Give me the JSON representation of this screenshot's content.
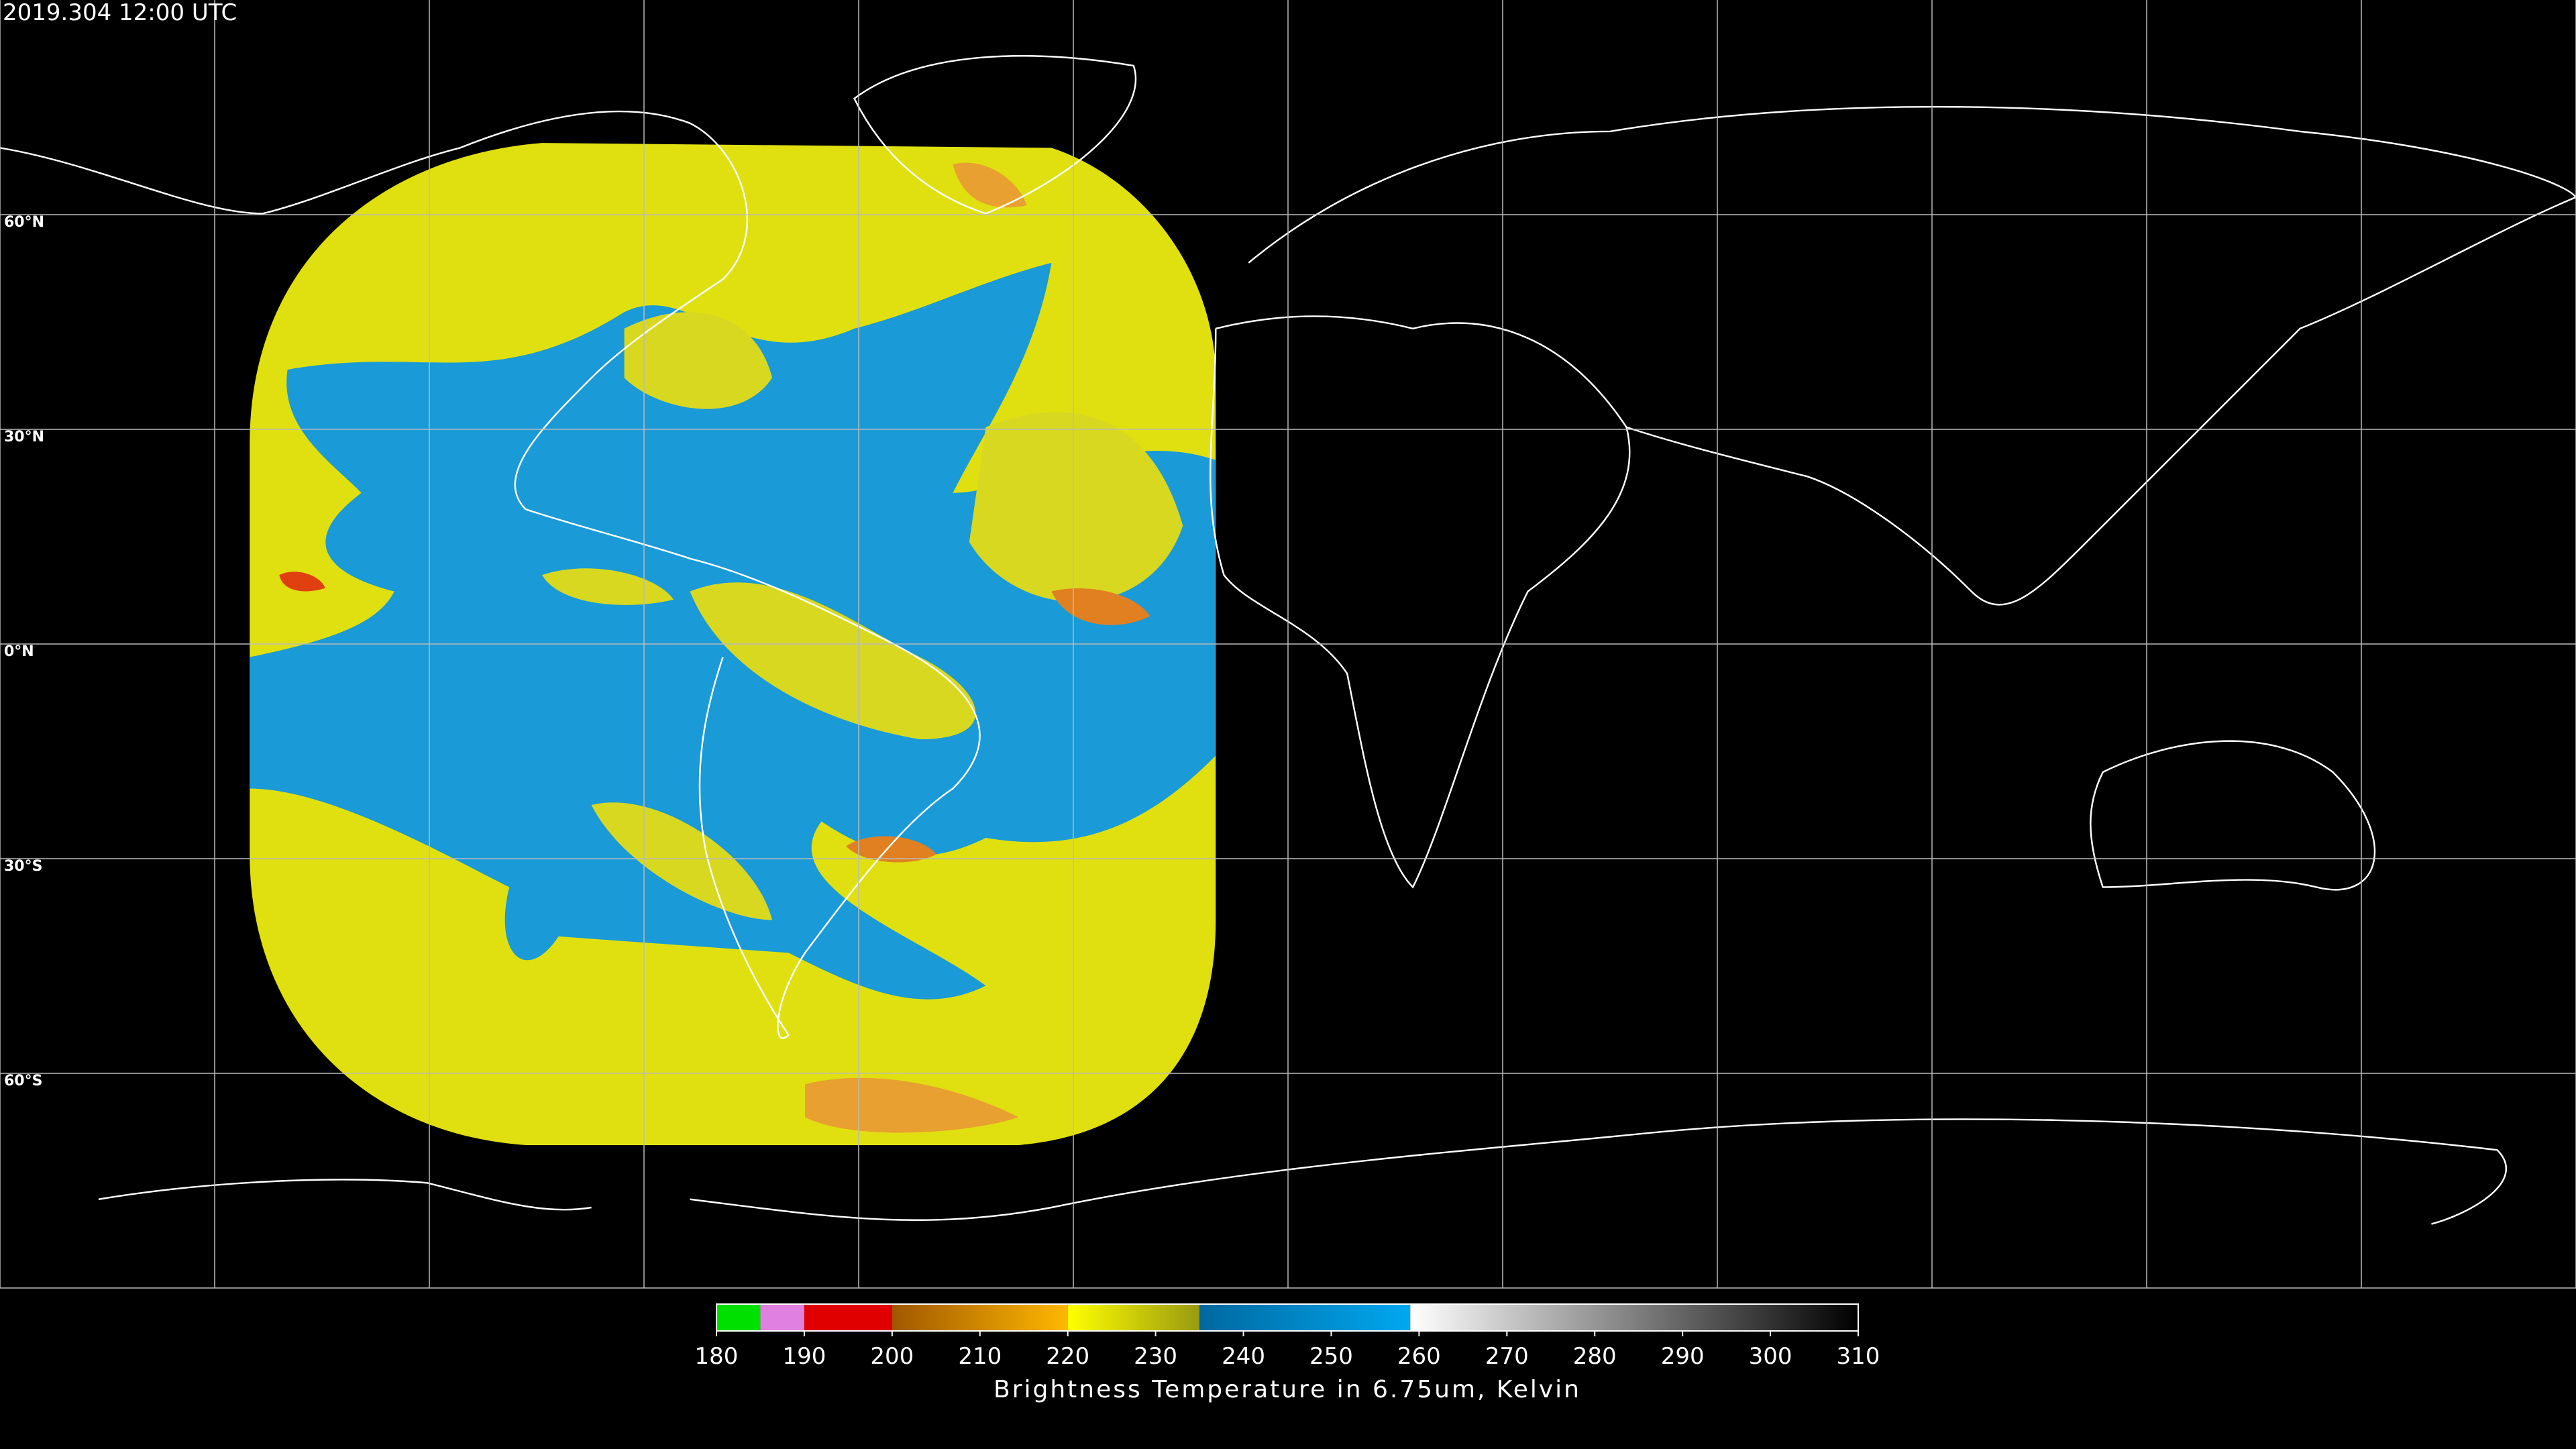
{
  "timestamp": "2019.304 12:00 UTC",
  "lat_labels": [
    "60°N",
    "30°N",
    "0°N",
    "30°S",
    "60°S"
  ],
  "colorbar": {
    "label": "Brightness Temperature in 6.75um, Kelvin",
    "lim": [
      180,
      310
    ],
    "ticks": [
      180,
      190,
      200,
      210,
      220,
      230,
      240,
      250,
      260,
      270,
      280,
      290,
      300,
      310
    ],
    "segments": [
      {
        "from": 180,
        "to": 185,
        "colors": [
          "#00e000",
          "#00e000"
        ]
      },
      {
        "from": 185,
        "to": 190,
        "colors": [
          "#e080e0",
          "#e080e0"
        ]
      },
      {
        "from": 190,
        "to": 200,
        "colors": [
          "#e00000",
          "#e00000"
        ]
      },
      {
        "from": 200,
        "to": 220,
        "colors": [
          "#a05800",
          "#ffb800"
        ]
      },
      {
        "from": 220,
        "to": 235,
        "colors": [
          "#ffff00",
          "#9a9a10"
        ]
      },
      {
        "from": 235,
        "to": 259,
        "colors": [
          "#0068a0",
          "#00a8f0"
        ]
      },
      {
        "from": 259,
        "to": 310,
        "colors": [
          "#ffffff",
          "#000000"
        ]
      }
    ]
  }
}
